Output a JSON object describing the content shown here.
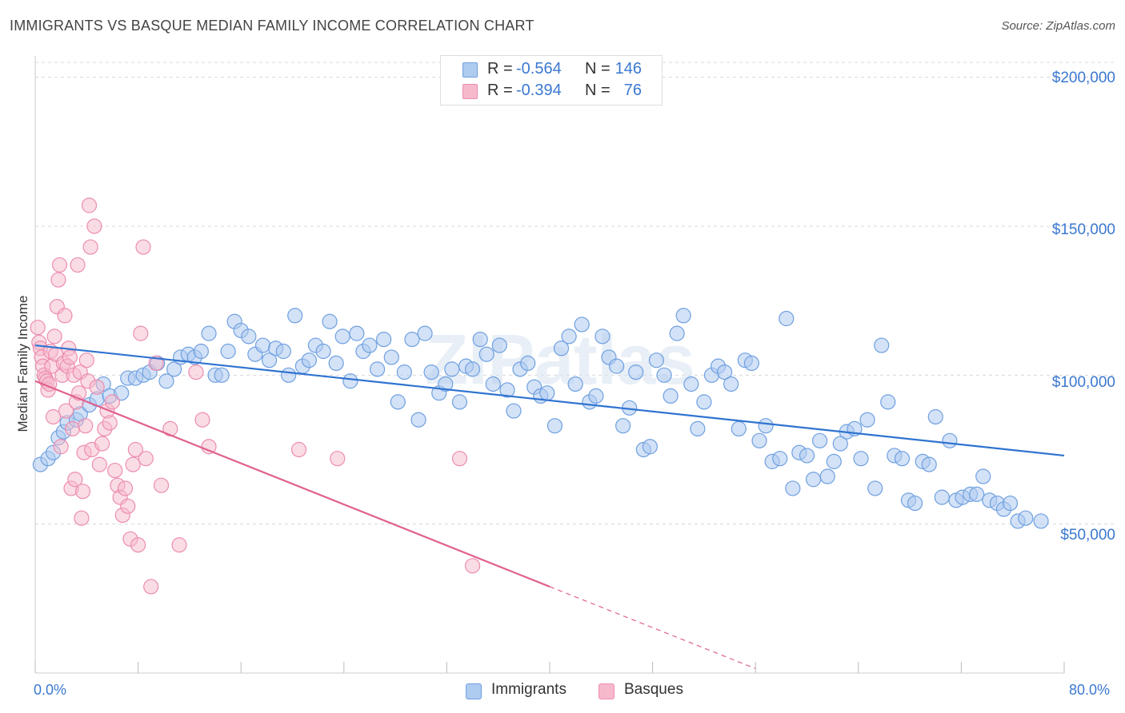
{
  "header": {
    "title": "IMMIGRANTS VS BASQUE MEDIAN FAMILY INCOME CORRELATION CHART",
    "source": "Source: ZipAtlas.com"
  },
  "legend": {
    "rows": [
      {
        "r_label": "R =",
        "r_value": "-0.564",
        "n_label": "N =",
        "n_value": "146"
      },
      {
        "r_label": "R =",
        "r_value": "-0.394",
        "n_label": "N =",
        "n_value": "76"
      }
    ]
  },
  "bottom_legend": {
    "immigrants": "Immigrants",
    "basques": "Basques"
  },
  "axes": {
    "ylabel": "Median Family Income",
    "y_ticks": [
      "$200,000",
      "$150,000",
      "$100,000",
      "$50,000"
    ],
    "x_min_label": "0.0%",
    "x_max_label": "80.0%"
  },
  "chart_data": {
    "type": "scatter",
    "title": "IMMIGRANTS VS BASQUE MEDIAN FAMILY INCOME CORRELATION CHART",
    "xlabel": "",
    "ylabel": "Median Family Income",
    "xlim": [
      0,
      80
    ],
    "ylim": [
      0,
      205000
    ],
    "y_tick_values": [
      50000,
      100000,
      150000,
      200000
    ],
    "grid": true,
    "legend_position": "top-center",
    "colors": {
      "immigrants_fill": "#aecbf0",
      "immigrants_stroke": "#6fa0e0",
      "immigrants_line": "#2f73d0",
      "basques_fill": "#f6b9cc",
      "basques_stroke": "#ec8db0",
      "basques_line": "#e0608f",
      "axis_text": "#3b78d0"
    },
    "series": [
      {
        "name": "Immigrants",
        "trend": {
          "x0": 0,
          "y0": 110000,
          "x1": 80,
          "y1": 73000
        },
        "points": [
          [
            0.4,
            70000
          ],
          [
            1.0,
            72000
          ],
          [
            1.4,
            74000
          ],
          [
            1.8,
            79000
          ],
          [
            2.2,
            81000
          ],
          [
            2.5,
            84000
          ],
          [
            3.2,
            85000
          ],
          [
            3.5,
            87000
          ],
          [
            4.2,
            90000
          ],
          [
            4.8,
            92000
          ],
          [
            5.3,
            97000
          ],
          [
            5.8,
            93000
          ],
          [
            6.7,
            94000
          ],
          [
            7.2,
            99000
          ],
          [
            7.8,
            99000
          ],
          [
            8.4,
            100000
          ],
          [
            8.9,
            101000
          ],
          [
            9.5,
            104000
          ],
          [
            10.2,
            98000
          ],
          [
            10.8,
            102000
          ],
          [
            11.3,
            106000
          ],
          [
            11.9,
            107000
          ],
          [
            12.4,
            106000
          ],
          [
            12.9,
            108000
          ],
          [
            13.5,
            114000
          ],
          [
            14.0,
            100000
          ],
          [
            14.5,
            100000
          ],
          [
            15.0,
            108000
          ],
          [
            15.5,
            118000
          ],
          [
            16.0,
            115000
          ],
          [
            16.6,
            113000
          ],
          [
            17.1,
            107000
          ],
          [
            17.7,
            110000
          ],
          [
            18.2,
            105000
          ],
          [
            18.7,
            109000
          ],
          [
            19.3,
            108000
          ],
          [
            19.7,
            100000
          ],
          [
            20.2,
            120000
          ],
          [
            20.8,
            103000
          ],
          [
            21.3,
            105000
          ],
          [
            21.8,
            110000
          ],
          [
            22.4,
            108000
          ],
          [
            22.9,
            118000
          ],
          [
            23.4,
            104000
          ],
          [
            23.9,
            113000
          ],
          [
            24.5,
            98000
          ],
          [
            25.0,
            114000
          ],
          [
            25.5,
            108000
          ],
          [
            26.0,
            110000
          ],
          [
            26.6,
            102000
          ],
          [
            27.1,
            112000
          ],
          [
            27.7,
            106000
          ],
          [
            28.2,
            91000
          ],
          [
            28.7,
            101000
          ],
          [
            29.3,
            112000
          ],
          [
            29.8,
            85000
          ],
          [
            30.3,
            114000
          ],
          [
            30.8,
            101000
          ],
          [
            31.4,
            94000
          ],
          [
            31.9,
            97000
          ],
          [
            32.4,
            102000
          ],
          [
            33.0,
            91000
          ],
          [
            33.5,
            103000
          ],
          [
            34.0,
            102000
          ],
          [
            34.6,
            112000
          ],
          [
            35.1,
            107000
          ],
          [
            35.6,
            97000
          ],
          [
            36.1,
            110000
          ],
          [
            36.7,
            95000
          ],
          [
            37.2,
            88000
          ],
          [
            37.7,
            102000
          ],
          [
            38.3,
            104000
          ],
          [
            38.8,
            96000
          ],
          [
            39.3,
            93000
          ],
          [
            39.8,
            94000
          ],
          [
            40.4,
            83000
          ],
          [
            40.9,
            109000
          ],
          [
            41.5,
            113000
          ],
          [
            42.0,
            97000
          ],
          [
            42.5,
            117000
          ],
          [
            43.1,
            91000
          ],
          [
            43.6,
            93000
          ],
          [
            44.1,
            113000
          ],
          [
            44.6,
            106000
          ],
          [
            45.2,
            103000
          ],
          [
            45.7,
            83000
          ],
          [
            46.2,
            89000
          ],
          [
            46.7,
            101000
          ],
          [
            47.3,
            75000
          ],
          [
            47.8,
            76000
          ],
          [
            48.3,
            105000
          ],
          [
            48.9,
            100000
          ],
          [
            49.4,
            93000
          ],
          [
            49.9,
            114000
          ],
          [
            50.4,
            120000
          ],
          [
            51.0,
            97000
          ],
          [
            51.5,
            82000
          ],
          [
            52.0,
            91000
          ],
          [
            52.6,
            100000
          ],
          [
            53.1,
            103000
          ],
          [
            53.6,
            101000
          ],
          [
            54.1,
            97000
          ],
          [
            54.7,
            82000
          ],
          [
            55.2,
            105000
          ],
          [
            55.7,
            104000
          ],
          [
            56.3,
            78000
          ],
          [
            56.8,
            83000
          ],
          [
            57.3,
            71000
          ],
          [
            57.9,
            72000
          ],
          [
            58.4,
            119000
          ],
          [
            58.9,
            62000
          ],
          [
            59.4,
            74000
          ],
          [
            60.0,
            73000
          ],
          [
            60.5,
            65000
          ],
          [
            61.0,
            78000
          ],
          [
            61.6,
            66000
          ],
          [
            62.1,
            71000
          ],
          [
            62.6,
            77000
          ],
          [
            63.1,
            81000
          ],
          [
            63.7,
            82000
          ],
          [
            64.2,
            72000
          ],
          [
            64.7,
            85000
          ],
          [
            65.3,
            62000
          ],
          [
            65.8,
            110000
          ],
          [
            66.3,
            91000
          ],
          [
            66.8,
            73000
          ],
          [
            67.4,
            72000
          ],
          [
            67.9,
            58000
          ],
          [
            68.4,
            57000
          ],
          [
            69.0,
            71000
          ],
          [
            69.5,
            70000
          ],
          [
            70.0,
            86000
          ],
          [
            70.5,
            59000
          ],
          [
            71.1,
            78000
          ],
          [
            71.6,
            58000
          ],
          [
            72.1,
            59000
          ],
          [
            72.7,
            60000
          ],
          [
            73.2,
            60000
          ],
          [
            73.7,
            66000
          ],
          [
            74.2,
            58000
          ],
          [
            74.8,
            57000
          ],
          [
            75.3,
            55000
          ],
          [
            75.8,
            57000
          ],
          [
            76.4,
            51000
          ],
          [
            77.0,
            52000
          ],
          [
            78.2,
            51000
          ]
        ]
      },
      {
        "name": "Basques",
        "trend": {
          "x0": 0,
          "y0": 98000,
          "x1": 40,
          "y1": 29000,
          "dashed_to_x": 56,
          "dashed_to_y": 1500
        },
        "points": [
          [
            0.2,
            116000
          ],
          [
            0.3,
            111000
          ],
          [
            0.4,
            109000
          ],
          [
            0.5,
            106000
          ],
          [
            0.6,
            103000
          ],
          [
            0.7,
            100000
          ],
          [
            0.8,
            99000
          ],
          [
            0.9,
            98000
          ],
          [
            1.0,
            95000
          ],
          [
            1.1,
            97000
          ],
          [
            1.2,
            108000
          ],
          [
            1.3,
            103000
          ],
          [
            1.4,
            86000
          ],
          [
            1.5,
            113000
          ],
          [
            1.6,
            107000
          ],
          [
            1.7,
            123000
          ],
          [
            1.8,
            132000
          ],
          [
            1.9,
            137000
          ],
          [
            2.0,
            76000
          ],
          [
            2.1,
            100000
          ],
          [
            2.2,
            104000
          ],
          [
            2.3,
            120000
          ],
          [
            2.4,
            88000
          ],
          [
            2.5,
            103000
          ],
          [
            2.6,
            109000
          ],
          [
            2.7,
            106000
          ],
          [
            2.8,
            62000
          ],
          [
            2.9,
            82000
          ],
          [
            3.0,
            100000
          ],
          [
            3.1,
            65000
          ],
          [
            3.2,
            91000
          ],
          [
            3.3,
            137000
          ],
          [
            3.4,
            94000
          ],
          [
            3.5,
            101000
          ],
          [
            3.6,
            52000
          ],
          [
            3.7,
            61000
          ],
          [
            3.8,
            74000
          ],
          [
            3.9,
            83000
          ],
          [
            4.0,
            105000
          ],
          [
            4.1,
            98000
          ],
          [
            4.2,
            157000
          ],
          [
            4.3,
            143000
          ],
          [
            4.4,
            75000
          ],
          [
            4.6,
            150000
          ],
          [
            4.8,
            96000
          ],
          [
            5.0,
            70000
          ],
          [
            5.2,
            77000
          ],
          [
            5.4,
            82000
          ],
          [
            5.6,
            88000
          ],
          [
            5.8,
            84000
          ],
          [
            6.0,
            91000
          ],
          [
            6.2,
            68000
          ],
          [
            6.4,
            63000
          ],
          [
            6.6,
            59000
          ],
          [
            6.8,
            53000
          ],
          [
            7.0,
            62000
          ],
          [
            7.2,
            56000
          ],
          [
            7.4,
            45000
          ],
          [
            7.6,
            70000
          ],
          [
            7.8,
            75000
          ],
          [
            8.0,
            43000
          ],
          [
            8.2,
            114000
          ],
          [
            8.4,
            143000
          ],
          [
            8.6,
            72000
          ],
          [
            9.0,
            29000
          ],
          [
            9.4,
            104000
          ],
          [
            9.8,
            63000
          ],
          [
            10.5,
            82000
          ],
          [
            11.2,
            43000
          ],
          [
            12.5,
            101000
          ],
          [
            13.0,
            85000
          ],
          [
            13.5,
            76000
          ],
          [
            20.5,
            75000
          ],
          [
            23.5,
            72000
          ],
          [
            33.0,
            72000
          ],
          [
            34.0,
            36000
          ]
        ]
      }
    ]
  }
}
